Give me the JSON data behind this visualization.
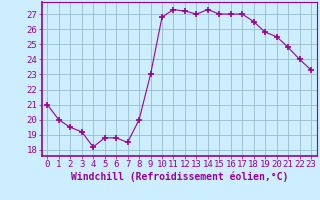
{
  "x": [
    0,
    1,
    2,
    3,
    4,
    5,
    6,
    7,
    8,
    9,
    10,
    11,
    12,
    13,
    14,
    15,
    16,
    17,
    18,
    19,
    20,
    21,
    22,
    23
  ],
  "y": [
    21.0,
    20.0,
    19.5,
    19.2,
    18.2,
    18.8,
    18.8,
    18.5,
    20.0,
    23.0,
    26.8,
    27.3,
    27.2,
    27.0,
    27.3,
    27.0,
    27.0,
    27.0,
    26.5,
    25.8,
    25.5,
    24.8,
    24.0,
    23.3
  ],
  "line_color": "#990099",
  "marker": "+",
  "marker_size": 4,
  "background_color": "#cceeff",
  "grid_color": "#99bbcc",
  "xlabel": "Windchill (Refroidissement éolien,°C)",
  "xlabel_fontsize": 7,
  "ylabel_ticks": [
    18,
    19,
    20,
    21,
    22,
    23,
    24,
    25,
    26,
    27
  ],
  "xlim": [
    -0.5,
    23.5
  ],
  "ylim": [
    17.6,
    27.8
  ],
  "tick_fontsize": 6.5,
  "xtick_labels": [
    "0",
    "1",
    "2",
    "3",
    "4",
    "5",
    "6",
    "7",
    "8",
    "9",
    "10",
    "11",
    "12",
    "13",
    "14",
    "15",
    "16",
    "17",
    "18",
    "19",
    "20",
    "21",
    "22",
    "23"
  ]
}
